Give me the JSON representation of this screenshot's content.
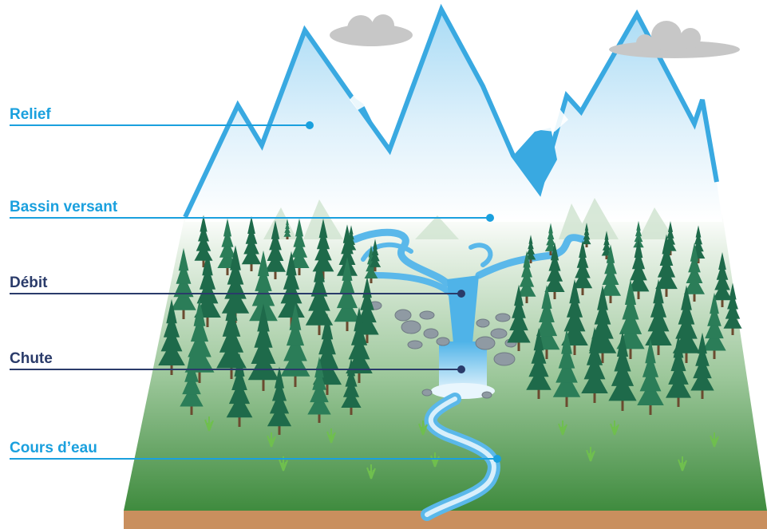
{
  "labels": [
    {
      "key": "relief",
      "text": "Relief",
      "color": "#1aa0de"
    },
    {
      "key": "bassin",
      "text": "Bassin versant",
      "color": "#1aa0de"
    },
    {
      "key": "debit",
      "text": "Débit",
      "color": "#2a3b6a"
    },
    {
      "key": "chute",
      "text": "Chute",
      "color": "#2a3b6a"
    },
    {
      "key": "cours",
      "text": "Cours d’eau",
      "color": "#1aa0de"
    }
  ],
  "colors": {
    "mountain": "#cfe9f7",
    "mountain_outline": "#39a9e1",
    "forest_light": "#eaf3ea",
    "forest_dark": "#3e8a3d",
    "tree": "#1e6a4a",
    "water": "#5ab8ea",
    "ground": "#c98f5e",
    "rock": "#8f9aa3"
  }
}
